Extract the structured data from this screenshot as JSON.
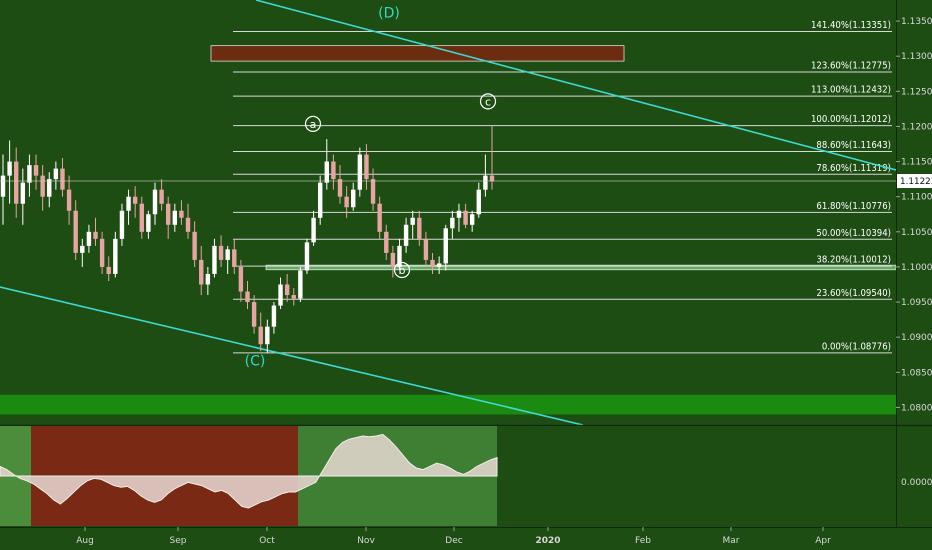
{
  "chart_data": [
    {
      "type": "candlestick",
      "ylim": [
        1.0775,
        1.138
      ],
      "price_ticks": [
        "1.13500",
        "1.13000",
        "1.12500",
        "1.12000",
        "1.11500",
        "1.11000",
        "1.10500",
        "1.10000",
        "1.09500",
        "1.09000",
        "1.08500",
        "1.08000"
      ],
      "current_price": "1.11223",
      "time_ticks": [
        "Aug",
        "Sep",
        "Oct",
        "Nov",
        "Dec",
        "2020",
        "Feb",
        "Mar",
        "Apr"
      ],
      "fib_levels": [
        {
          "label": "141.40%(1.13351)",
          "value": 1.13351
        },
        {
          "label": "123.60%(1.12775)",
          "value": 1.12775
        },
        {
          "label": "113.00%(1.12432)",
          "value": 1.12432
        },
        {
          "label": "100.00%(1.12012)",
          "value": 1.12012
        },
        {
          "label": "88.60%(1.11643)",
          "value": 1.11643
        },
        {
          "label": "78.60%(1.11319)",
          "value": 1.11319
        },
        {
          "label": "61.80%(1.10776)",
          "value": 1.10776
        },
        {
          "label": "50.00%(1.10394)",
          "value": 1.10394
        },
        {
          "label": "38.20%(1.10012)",
          "value": 1.10012
        },
        {
          "label": "23.60%(1.09540)",
          "value": 1.0954
        },
        {
          "label": "0.00%(1.08776)",
          "value": 1.08776
        }
      ],
      "wave_labels": [
        {
          "text": "(D)",
          "value": 1.1355,
          "style": "big"
        },
        {
          "text": "(C)",
          "value": 1.086,
          "style": "big"
        },
        {
          "text": "a",
          "value": 1.1198,
          "style": "circle"
        },
        {
          "text": "b",
          "value": 1.099,
          "style": "circle"
        },
        {
          "text": "c",
          "value": 1.123,
          "style": "circle"
        }
      ],
      "zones": [
        {
          "name": "resistance-zone",
          "y_top": 1.1315,
          "y_bottom": 1.1293,
          "color": "#6b2c0f"
        },
        {
          "name": "support-zone",
          "y_top": 1.10025,
          "y_bottom": 1.0996,
          "color": "#5fae5f"
        },
        {
          "name": "bottom-band",
          "y_top": 1.0818,
          "y_bottom": 1.079,
          "color": "#1b8a10"
        }
      ],
      "candles": [
        [
          1.11,
          1.116,
          1.106,
          1.113
        ],
        [
          1.113,
          1.118,
          1.109,
          1.115
        ],
        [
          1.115,
          1.117,
          1.107,
          1.109
        ],
        [
          1.109,
          1.114,
          1.106,
          1.112
        ],
        [
          1.112,
          1.116,
          1.11,
          1.1145
        ],
        [
          1.1145,
          1.116,
          1.111,
          1.113
        ],
        [
          1.113,
          1.1145,
          1.108,
          1.11
        ],
        [
          1.11,
          1.1135,
          1.1085,
          1.1125
        ],
        [
          1.1125,
          1.115,
          1.111,
          1.114
        ],
        [
          1.114,
          1.1155,
          1.11,
          1.111
        ],
        [
          1.111,
          1.113,
          1.106,
          1.108
        ],
        [
          1.108,
          1.1095,
          1.101,
          1.102
        ],
        [
          1.102,
          1.104,
          1.1,
          1.103
        ],
        [
          1.103,
          1.106,
          1.102,
          1.105
        ],
        [
          1.105,
          1.107,
          1.103,
          1.104
        ],
        [
          1.104,
          1.105,
          1.099,
          1.1
        ],
        [
          1.1,
          1.1015,
          1.098,
          1.099
        ],
        [
          1.099,
          1.105,
          1.0985,
          1.104
        ],
        [
          1.104,
          1.109,
          1.103,
          1.108
        ],
        [
          1.108,
          1.111,
          1.106,
          1.11
        ],
        [
          1.11,
          1.1115,
          1.107,
          1.109
        ],
        [
          1.109,
          1.11,
          1.104,
          1.105
        ],
        [
          1.105,
          1.108,
          1.104,
          1.1075
        ],
        [
          1.1075,
          1.112,
          1.106,
          1.111
        ],
        [
          1.111,
          1.1125,
          1.108,
          1.109
        ],
        [
          1.109,
          1.11,
          1.104,
          1.106
        ],
        [
          1.106,
          1.109,
          1.105,
          1.108
        ],
        [
          1.108,
          1.1095,
          1.106,
          1.107
        ],
        [
          1.107,
          1.109,
          1.104,
          1.105
        ],
        [
          1.105,
          1.1065,
          1.1,
          1.101
        ],
        [
          1.101,
          1.103,
          1.096,
          1.0975
        ],
        [
          1.0975,
          1.1,
          1.096,
          1.099
        ],
        [
          1.099,
          1.104,
          1.0985,
          1.103
        ],
        [
          1.103,
          1.1045,
          1.1,
          1.101
        ],
        [
          1.101,
          1.103,
          1.099,
          1.1025
        ],
        [
          1.1025,
          1.104,
          1.099,
          1.1
        ],
        [
          1.1,
          1.101,
          1.095,
          1.0965
        ],
        [
          1.0965,
          1.098,
          1.094,
          1.095
        ],
        [
          1.095,
          1.096,
          1.0905,
          1.0915
        ],
        [
          1.0915,
          1.0935,
          1.088,
          1.089
        ],
        [
          1.089,
          1.0925,
          1.0878,
          1.0915
        ],
        [
          1.0915,
          1.095,
          1.0905,
          1.0945
        ],
        [
          1.0945,
          1.0985,
          1.094,
          1.0975
        ],
        [
          1.0975,
          1.099,
          1.095,
          1.096
        ],
        [
          1.096,
          1.097,
          1.0945,
          1.0955
        ],
        [
          1.0955,
          1.1,
          1.095,
          1.0995
        ],
        [
          1.0995,
          1.104,
          1.099,
          1.1035
        ],
        [
          1.1035,
          1.108,
          1.103,
          1.107
        ],
        [
          1.107,
          1.113,
          1.106,
          1.112
        ],
        [
          1.112,
          1.1182,
          1.111,
          1.115
        ],
        [
          1.115,
          1.116,
          1.111,
          1.1125
        ],
        [
          1.1125,
          1.1145,
          1.109,
          1.11
        ],
        [
          1.11,
          1.1115,
          1.107,
          1.1085
        ],
        [
          1.1085,
          1.112,
          1.108,
          1.111
        ],
        [
          1.111,
          1.117,
          1.11,
          1.116
        ],
        [
          1.116,
          1.1175,
          1.111,
          1.1125
        ],
        [
          1.1125,
          1.114,
          1.108,
          1.109
        ],
        [
          1.109,
          1.11,
          1.104,
          1.105
        ],
        [
          1.105,
          1.106,
          1.101,
          1.102
        ],
        [
          1.102,
          1.103,
          1.0985,
          1.1
        ],
        [
          1.1,
          1.104,
          1.0995,
          1.103
        ],
        [
          1.103,
          1.107,
          1.102,
          1.106
        ],
        [
          1.106,
          1.108,
          1.104,
          1.107
        ],
        [
          1.107,
          1.108,
          1.103,
          1.104
        ],
        [
          1.104,
          1.105,
          1.1,
          1.101
        ],
        [
          1.101,
          1.102,
          1.099,
          1.1
        ],
        [
          1.1,
          1.1015,
          1.099,
          1.1005
        ],
        [
          1.1005,
          1.106,
          1.0995,
          1.1055
        ],
        [
          1.1055,
          1.108,
          1.104,
          1.107
        ],
        [
          1.107,
          1.109,
          1.105,
          1.108
        ],
        [
          1.108,
          1.109,
          1.1055,
          1.106
        ],
        [
          1.106,
          1.108,
          1.105,
          1.1075
        ],
        [
          1.1075,
          1.112,
          1.107,
          1.111
        ],
        [
          1.111,
          1.116,
          1.11,
          1.113
        ],
        [
          1.113,
          1.1201,
          1.111,
          1.1122
        ]
      ],
      "oscillator": {
        "zero_label": "0.00000",
        "ylim": [
          -0.06,
          0.06
        ],
        "values": [
          0.012,
          0.008,
          0.002,
          -0.003,
          -0.006,
          -0.01,
          -0.016,
          -0.022,
          -0.03,
          -0.035,
          -0.028,
          -0.02,
          -0.012,
          -0.006,
          -0.003,
          -0.004,
          -0.008,
          -0.012,
          -0.014,
          -0.013,
          -0.018,
          -0.025,
          -0.03,
          -0.033,
          -0.03,
          -0.022,
          -0.016,
          -0.012,
          -0.008,
          -0.01,
          -0.012,
          -0.016,
          -0.02,
          -0.018,
          -0.022,
          -0.03,
          -0.038,
          -0.04,
          -0.036,
          -0.032,
          -0.03,
          -0.026,
          -0.022,
          -0.02,
          -0.02,
          -0.016,
          -0.012,
          -0.008,
          0.006,
          0.02,
          0.034,
          0.042,
          0.046,
          0.048,
          0.05,
          0.049,
          0.05,
          0.052,
          0.045,
          0.036,
          0.026,
          0.016,
          0.01,
          0.008,
          0.012,
          0.016,
          0.014,
          0.01,
          0.005,
          0.002,
          0.006,
          0.012,
          0.016,
          0.02,
          0.023
        ],
        "zone_colors": [
          "#4b8d3a",
          "#7a2a14",
          "#3f7f33",
          "#1e4d14"
        ]
      }
    }
  ]
}
